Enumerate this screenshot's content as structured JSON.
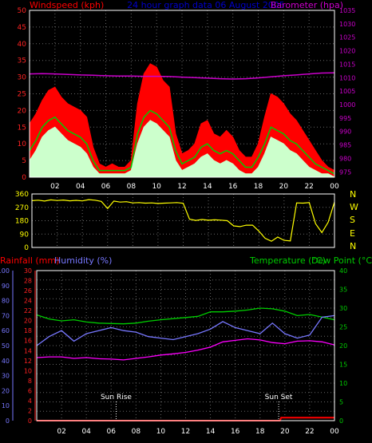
{
  "colors": {
    "wind": "#ff0000",
    "gust_mid": "#00cc00",
    "wind_light": "#ccffcc",
    "pressure": "#cc00cc",
    "dir": "#ffff00",
    "rain": "#ff0000",
    "humidity": "#7777ff",
    "temp": "#00cc00",
    "dew": "#ff00ff",
    "sun": "#ffffff",
    "grid": "#666666",
    "frame": "#ffffff",
    "left_axis": "#ff2222",
    "right_axis": "#cc00cc"
  },
  "top": {
    "labels": {
      "left": "Windspeed (kph)",
      "center": "24 hour graph data 06 August 2005",
      "right": "Barometer (hpa)"
    }
  },
  "middle": {
    "compass": [
      "N",
      "W",
      "S",
      "E",
      "N"
    ]
  },
  "bottom": {
    "labels": {
      "rain": "Rainfall (mm)",
      "humidity": "Humidity (%)",
      "temp": "Temperature (°C)",
      "dew": "Dew Point (°C)"
    },
    "annotations": [
      "Sun Rise",
      "Sun Set"
    ]
  },
  "chart_data": [
    {
      "type": "line",
      "name": "wind",
      "x_ticks": [
        "02",
        "04",
        "06",
        "08",
        "10",
        "12",
        "14",
        "16",
        "18",
        "20",
        "22",
        "00"
      ],
      "y_left_ticks": [
        0,
        5,
        10,
        15,
        20,
        25,
        30,
        35,
        40,
        45,
        50
      ],
      "y_right_ticks": [
        975,
        980,
        985,
        990,
        995,
        1000,
        1005,
        1010,
        1015,
        1020,
        1025,
        1030,
        1035
      ],
      "ylim_left": [
        0,
        50
      ],
      "ylim_right": [
        973,
        1035
      ],
      "xlim_hours": [
        0,
        24
      ],
      "series": [
        {
          "role": "gust",
          "x": [
            0.0,
            0.5,
            1.0,
            1.5,
            2.0,
            2.5,
            3.0,
            3.5,
            4.0,
            4.5,
            5.0,
            5.5,
            6.0,
            6.5,
            7.0,
            7.5,
            8.0,
            8.5,
            9.0,
            9.5,
            10.0,
            10.5,
            11.0,
            11.5,
            12.0,
            12.5,
            13.0,
            13.5,
            14.0,
            14.5,
            15.0,
            15.5,
            16.0,
            16.5,
            17.0,
            17.5,
            18.0,
            18.5,
            19.0,
            19.5,
            20.0,
            20.5,
            21.0,
            21.5,
            22.0,
            22.5,
            23.0,
            23.5,
            24.0
          ],
          "values": [
            16,
            19,
            23,
            26,
            27,
            24,
            22,
            21,
            20,
            18,
            9,
            4,
            3,
            4,
            3,
            3,
            5,
            22,
            31,
            34,
            33,
            29,
            27,
            13,
            7,
            8,
            10,
            16,
            17,
            13,
            12,
            14,
            12,
            8,
            6,
            6,
            10,
            18,
            25,
            24,
            22,
            19,
            17,
            14,
            11,
            8,
            5,
            3,
            2
          ]
        },
        {
          "role": "average",
          "x": [
            0.0,
            0.5,
            1.0,
            1.5,
            2.0,
            2.5,
            3.0,
            3.5,
            4.0,
            4.5,
            5.0,
            5.5,
            6.0,
            6.5,
            7.0,
            7.5,
            8.0,
            8.5,
            9.0,
            9.5,
            10.0,
            10.5,
            11.0,
            11.5,
            12.0,
            12.5,
            13.0,
            13.5,
            14.0,
            14.5,
            15.0,
            15.5,
            16.0,
            16.5,
            17.0,
            17.5,
            18.0,
            18.5,
            19.0,
            19.5,
            20.0,
            20.5,
            21.0,
            21.5,
            22.0,
            22.5,
            23.0,
            23.5,
            24.0
          ],
          "values": [
            8,
            11,
            15,
            17,
            18,
            16,
            14,
            13,
            12,
            10,
            5,
            2,
            2,
            2,
            2,
            2,
            3,
            13,
            18,
            20,
            19,
            17,
            15,
            8,
            4,
            5,
            6,
            9,
            10,
            8,
            7,
            8,
            7,
            5,
            3,
            3,
            6,
            10,
            15,
            14,
            13,
            11,
            10,
            8,
            6,
            4,
            3,
            2,
            1
          ]
        },
        {
          "role": "speed",
          "x": [
            0.0,
            0.5,
            1.0,
            1.5,
            2.0,
            2.5,
            3.0,
            3.5,
            4.0,
            4.5,
            5.0,
            5.5,
            6.0,
            6.5,
            7.0,
            7.5,
            8.0,
            8.5,
            9.0,
            9.5,
            10.0,
            10.5,
            11.0,
            11.5,
            12.0,
            12.5,
            13.0,
            13.5,
            14.0,
            14.5,
            15.0,
            15.5,
            16.0,
            16.5,
            17.0,
            17.5,
            18.0,
            18.5,
            19.0,
            19.5,
            20.0,
            20.5,
            21.0,
            21.5,
            22.0,
            22.5,
            23.0,
            23.5,
            24.0
          ],
          "values": [
            5,
            8,
            12,
            14,
            15,
            13,
            11,
            10,
            9,
            7,
            3,
            1,
            1,
            1,
            1,
            1,
            2,
            10,
            15,
            17,
            16,
            14,
            12,
            5,
            2,
            3,
            4,
            6,
            7,
            5,
            4,
            5,
            4,
            2,
            1,
            1,
            3,
            7,
            12,
            11,
            10,
            8,
            7,
            5,
            3,
            2,
            1,
            1,
            0
          ]
        },
        {
          "role": "pressure",
          "x": [
            0,
            1,
            2,
            3,
            4,
            5,
            6,
            7,
            8,
            9,
            10,
            11,
            12,
            13,
            14,
            15,
            16,
            17,
            18,
            19,
            20,
            21,
            22,
            23,
            24
          ],
          "values": [
            1011.4,
            1011.5,
            1011.4,
            1011.2,
            1011.0,
            1010.9,
            1010.7,
            1010.6,
            1010.6,
            1010.5,
            1010.5,
            1010.4,
            1010.2,
            1010.0,
            1009.8,
            1009.6,
            1009.5,
            1009.6,
            1009.9,
            1010.3,
            1010.7,
            1011.0,
            1011.4,
            1011.7,
            1011.8
          ]
        }
      ]
    },
    {
      "type": "line",
      "name": "wind_direction",
      "x_ticks": [
        "02",
        "04",
        "06",
        "08",
        "10",
        "12",
        "14",
        "16",
        "18",
        "20",
        "22",
        "00"
      ],
      "y_ticks": [
        0,
        90,
        180,
        270,
        360
      ],
      "ylim": [
        0,
        360
      ],
      "xlim_hours": [
        0,
        24
      ],
      "series": [
        {
          "name": "",
          "x": [
            0.0,
            0.5,
            1.0,
            1.5,
            2.0,
            2.5,
            3.0,
            3.5,
            4.0,
            4.5,
            5.0,
            5.5,
            6.0,
            6.5,
            7.0,
            7.5,
            8.0,
            8.5,
            9.0,
            9.5,
            10.0,
            10.5,
            11.0,
            11.5,
            12.0,
            12.5,
            13.0,
            13.5,
            14.0,
            14.5,
            15.0,
            15.5,
            16.0,
            16.5,
            17.0,
            17.5,
            18.0,
            18.5,
            19.0,
            19.5,
            20.0,
            20.5,
            21.0,
            21.5,
            22.0,
            22.5,
            23.0,
            23.5,
            24.0
          ],
          "values": [
            315,
            318,
            312,
            320,
            316,
            319,
            314,
            317,
            313,
            322,
            318,
            310,
            262,
            312,
            305,
            308,
            300,
            302,
            298,
            300,
            296,
            298,
            300,
            302,
            297,
            190,
            182,
            188,
            183,
            186,
            184,
            180,
            145,
            140,
            150,
            150,
            110,
            62,
            42,
            70,
            48,
            44,
            300,
            298,
            302,
            160,
            100,
            170,
            305
          ]
        }
      ]
    },
    {
      "type": "line",
      "name": "temperature_humidity",
      "x_ticks": [
        "02",
        "04",
        "06",
        "08",
        "10",
        "12",
        "14",
        "16",
        "18",
        "20",
        "22",
        "00"
      ],
      "y_left_rain_ticks": [
        0,
        2,
        4,
        6,
        8,
        10,
        12,
        14,
        16,
        18,
        20,
        22,
        24,
        26,
        28,
        30
      ],
      "y_left_humidity_ticks": [
        0,
        10,
        20,
        30,
        40,
        50,
        60,
        70,
        80,
        90,
        100
      ],
      "y_right_ticks": [
        0,
        5,
        10,
        15,
        20,
        25,
        30,
        35,
        40
      ],
      "ylim_humidity": [
        0,
        100
      ],
      "ylim_temp": [
        0,
        40
      ],
      "xlim_hours": [
        0,
        24
      ],
      "series": [
        {
          "role": "temperature",
          "x": [
            0,
            1,
            2,
            3,
            4,
            5,
            6,
            7,
            8,
            9,
            10,
            11,
            12,
            13,
            14,
            15,
            16,
            17,
            18,
            19,
            20,
            21,
            22,
            23,
            24
          ],
          "values": [
            28.2,
            27.1,
            26.6,
            26.9,
            26.3,
            26.0,
            25.9,
            25.8,
            26.0,
            26.5,
            26.9,
            27.2,
            27.5,
            27.8,
            29.0,
            29.0,
            29.2,
            29.5,
            30.0,
            29.8,
            29.2,
            28.0,
            28.3,
            27.6,
            26.9
          ]
        },
        {
          "role": "humidity",
          "x": [
            0,
            1,
            2,
            3,
            4,
            5,
            6,
            7,
            8,
            9,
            10,
            11,
            12,
            13,
            14,
            15,
            16,
            17,
            18,
            19,
            20,
            21,
            22,
            23,
            24
          ],
          "values": [
            50,
            56,
            60,
            53,
            58,
            60,
            62,
            60,
            59,
            56,
            55,
            54,
            56,
            58,
            61,
            66,
            62,
            60,
            58,
            65,
            58,
            55,
            57,
            69,
            70
          ]
        },
        {
          "role": "dew_point",
          "x": [
            0,
            1,
            2,
            3,
            4,
            5,
            6,
            7,
            8,
            9,
            10,
            11,
            12,
            13,
            14,
            15,
            16,
            17,
            18,
            19,
            20,
            21,
            22,
            23,
            24
          ],
          "values": [
            16.8,
            17.0,
            17.0,
            16.6,
            16.8,
            16.5,
            16.4,
            16.2,
            16.6,
            17.0,
            17.5,
            17.8,
            18.2,
            18.8,
            19.6,
            21.0,
            21.4,
            21.8,
            21.5,
            20.8,
            20.5,
            21.2,
            21.3,
            21.0,
            20.2
          ]
        },
        {
          "role": "rainfall",
          "x": [
            0,
            2,
            4,
            6,
            8,
            10,
            12,
            14,
            16,
            18,
            19.6,
            19.7,
            20,
            22,
            24
          ],
          "values": [
            0,
            0,
            0,
            0,
            0,
            0,
            0,
            0,
            0,
            0,
            0,
            0.6,
            0.6,
            0.6,
            0.6
          ]
        }
      ],
      "annotations_x_hours": [
        6.4,
        19.5
      ]
    }
  ]
}
